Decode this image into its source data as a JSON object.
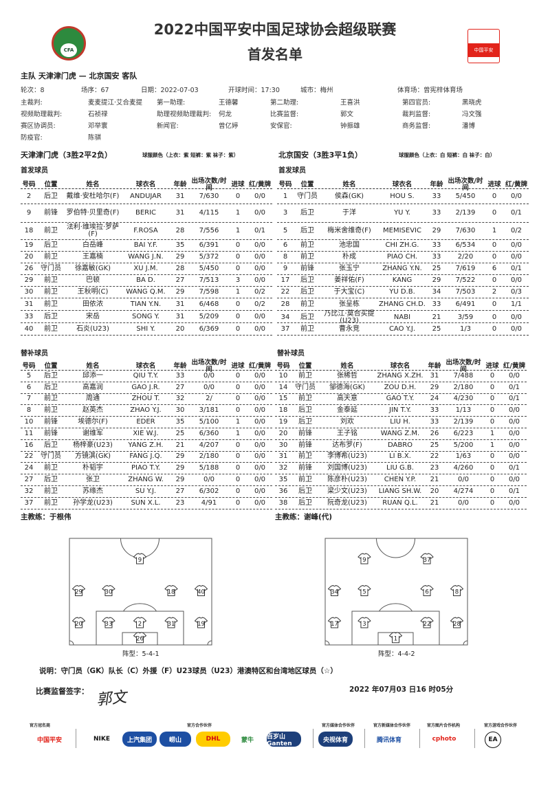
{
  "header": {
    "title": "2022中国平安中国足球协会超级联赛",
    "subtitle": "首发名单",
    "left_logo_text": "CFA",
    "right_logo_text": "中国平安"
  },
  "match": {
    "teams_line": "主队 天津津门虎 — 北京国安 客队",
    "round": "轮次：8",
    "match_no": "场序：67",
    "date": "日期：2022-07-03",
    "kickoff": "开球时间：17:30",
    "city": "城市：梅州",
    "stadium": "体育场：曾宪梓体育场"
  },
  "officials": [
    [
      "主裁判:",
      "麦麦提江·艾合麦提",
      "第一助理:",
      "王德馨",
      "第二助理:",
      "王喜洪",
      "第四官员:",
      "黑晓虎"
    ],
    [
      "视频助理裁判:",
      "石祯禄",
      "助理视频助理裁判:",
      "何龙",
      "比赛监督:",
      "郭文",
      "裁判监督:",
      "冯文强"
    ],
    [
      "赛区协调员:",
      "邓举寰",
      "新闻官:",
      "曾亿婷",
      "安保官:",
      "钟振雄",
      "商务监督:",
      "潘博"
    ],
    [
      "防疫官:",
      "陈骐",
      "",
      "",
      "",
      "",
      "",
      ""
    ]
  ],
  "columns": [
    "号码",
    "位置",
    "姓名",
    "球衣名",
    "年龄",
    "出场次数/时间",
    "进球",
    "红/黄牌"
  ],
  "labels": {
    "starters": "首发球员",
    "subs": "替补球员",
    "coach_prefix": "主教练："
  },
  "home": {
    "name": "天津津门虎（3胜2平2负）",
    "kit": "球服颜色（上衣：紫 短裤：紫 袜子：紫）",
    "coach": "于根伟",
    "starters": [
      [
        "2",
        "后卫",
        "戴维·安杜哈尔(F)",
        "ANDUJAR",
        "31",
        "7/630",
        "0",
        "0/0"
      ],
      [
        "9",
        "前锋",
        "罗伯特·贝里奇(F)",
        "BERIC",
        "31",
        "4/115",
        "1",
        "0/0"
      ],
      [
        "18",
        "前卫",
        "法利·维埃拉·罗萨(F)",
        "F.ROSA",
        "28",
        "7/556",
        "1",
        "0/1"
      ],
      [
        "19",
        "后卫",
        "白岳峰",
        "BAI Y.F.",
        "35",
        "6/391",
        "0",
        "0/0"
      ],
      [
        "20",
        "前卫",
        "王嘉楠",
        "WANG J.N.",
        "29",
        "5/372",
        "0",
        "0/0"
      ],
      [
        "26",
        "守门员",
        "徐嘉敏(GK)",
        "XU J.M.",
        "28",
        "5/450",
        "0",
        "0/0"
      ],
      [
        "29",
        "前卫",
        "巴顿",
        "BA D.",
        "27",
        "7/513",
        "3",
        "0/0"
      ],
      [
        "30",
        "前卫",
        "王秋明(C)",
        "WANG Q.M.",
        "29",
        "7/598",
        "1",
        "0/2"
      ],
      [
        "31",
        "前卫",
        "田依浓",
        "TIAN Y.N.",
        "31",
        "6/468",
        "0",
        "0/2"
      ],
      [
        "33",
        "后卫",
        "宋岳",
        "SONG Y.",
        "31",
        "5/209",
        "0",
        "0/0"
      ],
      [
        "40",
        "前卫",
        "石炎(U23)",
        "SHI Y.",
        "20",
        "6/369",
        "0",
        "0/0"
      ]
    ],
    "subs": [
      [
        "5",
        "后卫",
        "邱添一",
        "QIU T.Y.",
        "33",
        "0/0",
        "0",
        "0/0"
      ],
      [
        "6",
        "后卫",
        "高嘉润",
        "GAO J.R.",
        "27",
        "0/0",
        "0",
        "0/0"
      ],
      [
        "7",
        "前卫",
        "周通",
        "ZHOU T.",
        "32",
        "2/",
        "0",
        "0/0"
      ],
      [
        "8",
        "前卫",
        "赵英杰",
        "ZHAO Y.J.",
        "30",
        "3/181",
        "0",
        "0/0"
      ],
      [
        "10",
        "前锋",
        "埃德尔(F)",
        "EDER",
        "35",
        "5/100",
        "1",
        "0/0"
      ],
      [
        "11",
        "前锋",
        "谢维军",
        "XIE W.J.",
        "25",
        "6/360",
        "1",
        "0/0"
      ],
      [
        "16",
        "后卫",
        "杨梓豪(U23)",
        "YANG Z.H.",
        "21",
        "4/207",
        "0",
        "0/0"
      ],
      [
        "22",
        "守门员",
        "方镜淇(GK)",
        "FANG J.Q.",
        "29",
        "2/180",
        "0",
        "0/0"
      ],
      [
        "24",
        "前卫",
        "朴韬宇",
        "PIAO T.Y.",
        "29",
        "5/188",
        "0",
        "0/0"
      ],
      [
        "27",
        "后卫",
        "张卫",
        "ZHANG W.",
        "29",
        "0/0",
        "0",
        "0/0"
      ],
      [
        "32",
        "前卫",
        "苏缘杰",
        "SU Y.J.",
        "27",
        "6/302",
        "0",
        "0/0"
      ],
      [
        "37",
        "前卫",
        "孙学龙(U23)",
        "SUN X.L.",
        "23",
        "4/91",
        "0",
        "0/0"
      ]
    ],
    "formation_label": "阵型：5-4-1",
    "formation_lines": [
      [
        "9"
      ],
      [
        "29",
        "30",
        "18",
        "40"
      ],
      [
        "20",
        "33",
        "2",
        "31",
        "19"
      ],
      [
        "26"
      ]
    ]
  },
  "away": {
    "name": "北京国安（3胜3平1负）",
    "kit": "球服颜色（上衣：白 短裤：白 袜子：白）",
    "coach": "谢峰(代)",
    "starters": [
      [
        "1",
        "守门员",
        "侯森(GK)",
        "HOU S.",
        "33",
        "5/450",
        "0",
        "0/0"
      ],
      [
        "3",
        "后卫",
        "于洋",
        "YU Y.",
        "33",
        "2/139",
        "0",
        "0/1"
      ],
      [
        "5",
        "后卫",
        "梅米舍维奇(F)",
        "MEMISEVIC",
        "29",
        "7/630",
        "1",
        "0/2"
      ],
      [
        "6",
        "前卫",
        "池忠国",
        "CHI ZH.G.",
        "33",
        "6/534",
        "0",
        "0/0"
      ],
      [
        "8",
        "前卫",
        "朴成",
        "PIAO CH.",
        "33",
        "2/20",
        "0",
        "0/0"
      ],
      [
        "9",
        "前锋",
        "张玉宁",
        "ZHANG Y.N.",
        "25",
        "7/619",
        "6",
        "0/1"
      ],
      [
        "17",
        "后卫",
        "姜祥佑(F)",
        "KANG",
        "29",
        "7/522",
        "0",
        "0/0"
      ],
      [
        "22",
        "后卫",
        "于大宝(C)",
        "YU D.B.",
        "34",
        "7/503",
        "2",
        "0/3"
      ],
      [
        "28",
        "前卫",
        "张呈栋",
        "ZHANG CH.D.",
        "33",
        "6/491",
        "0",
        "1/1"
      ],
      [
        "34",
        "后卫",
        "乃比江·莫合买提(U23)",
        "NABI",
        "21",
        "3/59",
        "0",
        "0/0"
      ],
      [
        "37",
        "前卫",
        "曹永竞",
        "CAO Y.J.",
        "25",
        "1/3",
        "0",
        "0/0"
      ]
    ],
    "subs": [
      [
        "10",
        "前卫",
        "张稀哲",
        "ZHANG X.ZH.",
        "31",
        "7/488",
        "0",
        "0/0"
      ],
      [
        "14",
        "守门员",
        "邹德海(GK)",
        "ZOU D.H.",
        "29",
        "2/180",
        "0",
        "0/1"
      ],
      [
        "15",
        "前卫",
        "高天意",
        "GAO T.Y.",
        "24",
        "4/230",
        "0",
        "0/1"
      ],
      [
        "18",
        "后卫",
        "金泰延",
        "JIN T.Y.",
        "33",
        "1/13",
        "0",
        "0/0"
      ],
      [
        "19",
        "后卫",
        "刘欢",
        "LIU H.",
        "33",
        "2/139",
        "0",
        "0/0"
      ],
      [
        "20",
        "前锋",
        "王子铭",
        "WANG Z.M.",
        "26",
        "6/223",
        "1",
        "0/0"
      ],
      [
        "30",
        "前锋",
        "达布罗(F)",
        "DABRO",
        "25",
        "5/200",
        "1",
        "0/0"
      ],
      [
        "31",
        "前卫",
        "李博希(U23)",
        "LI B.X.",
        "22",
        "1/63",
        "0",
        "0/0"
      ],
      [
        "32",
        "前锋",
        "刘国博(U23)",
        "LIU G.B.",
        "23",
        "4/260",
        "0",
        "0/1"
      ],
      [
        "35",
        "前卫",
        "陈彦朴(U23)",
        "CHEN Y.P.",
        "21",
        "0/0",
        "0",
        "0/0"
      ],
      [
        "36",
        "后卫",
        "梁少文(U23)",
        "LIANG SH.W.",
        "20",
        "4/274",
        "0",
        "0/1"
      ],
      [
        "38",
        "后卫",
        "阮奇龙(U23)",
        "RUAN Q.L.",
        "21",
        "0/0",
        "0",
        "0/0"
      ]
    ],
    "formation_label": "阵型：4-4-2",
    "formation_lines": [
      [
        "9",
        "37"
      ],
      [
        "34",
        "5",
        "6",
        "8"
      ],
      [
        "17",
        "3",
        "22",
        "28"
      ],
      [
        "1"
      ]
    ]
  },
  "footer": {
    "legend": "说明：守门员（GK）队长（C）外援（F）U23球员（U23）港澳特区和台湾地区球员（☆）",
    "signature_label": "比赛监督签字：",
    "signature": "郭文",
    "timestamp": "2022 年07月03 日16 时05分"
  },
  "sponsors": {
    "captions": [
      "官方冠名商",
      "官方合作伙伴",
      "官方媒体合作伙伴",
      "官方新媒体合作伙伴",
      "官方图片合作机构",
      "官方游戏合作伙伴"
    ],
    "logos": [
      "中国平安",
      "NIKE",
      "上汽集团",
      "崂山",
      "DHL",
      "蒙牛",
      "百岁山 Ganten",
      "央视体育",
      "腾讯体育",
      "cphoto",
      "EA"
    ]
  },
  "colors": {
    "text": "#222222",
    "pingan_red": "#e2231a",
    "cfa_green": "#2d8a3e",
    "dhl_yellow": "#ffcc00",
    "partner_blue": "#1d4fa3"
  }
}
